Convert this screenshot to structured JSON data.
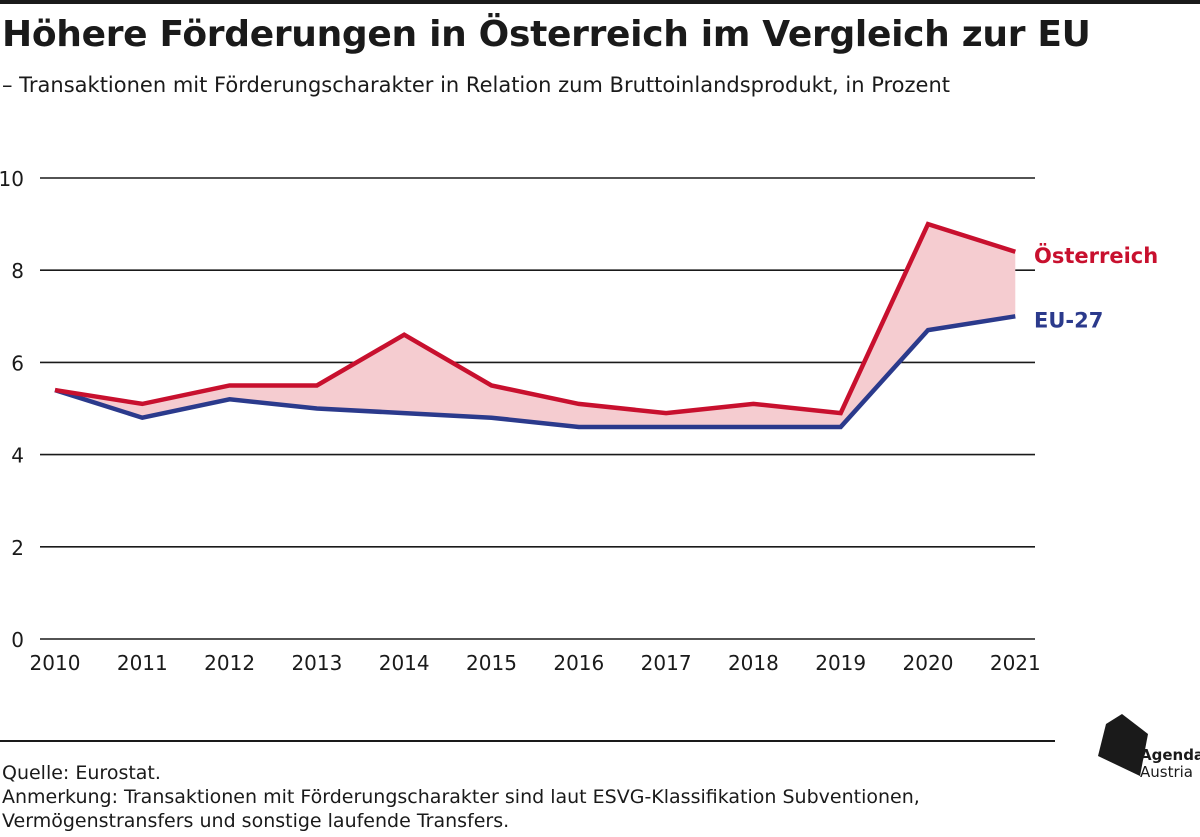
{
  "header": {
    "title": "Höhere Förderungen in Österreich im Vergleich zur EU",
    "subtitle": "– Transaktionen mit Förderungscharakter in Relation zum Bruttoinlandsprodukt, in Prozent"
  },
  "chart_data": {
    "type": "line",
    "x": [
      "2010",
      "2011",
      "2012",
      "2013",
      "2014",
      "2015",
      "2016",
      "2017",
      "2018",
      "2019",
      "2020",
      "2021"
    ],
    "series": [
      {
        "name": "Österreich",
        "color": "#c8102e",
        "values": [
          5.4,
          5.1,
          5.5,
          5.5,
          6.6,
          5.5,
          5.1,
          4.9,
          5.1,
          4.9,
          9.0,
          8.4
        ]
      },
      {
        "name": "EU-27",
        "color": "#2b3a8c",
        "values": [
          5.4,
          4.8,
          5.2,
          5.0,
          4.9,
          4.8,
          4.6,
          4.6,
          4.6,
          4.6,
          6.7,
          7.0
        ]
      }
    ],
    "fill_between": {
      "color": "#f5ccd0"
    },
    "yticks": [
      0,
      2,
      4,
      6,
      8,
      10
    ],
    "ylim": [
      0,
      10
    ],
    "grid": "horizontal",
    "legend": "direct labels at line ends"
  },
  "footer": {
    "source": "Quelle: Eurostat.",
    "note_line1": "Anmerkung: Transaktionen mit Förderungscharakter sind laut ESVG-Klassifikation Subventionen,",
    "note_line2": "Vermögenstransfers und sonstige laufende Transfers."
  },
  "logo": {
    "line1": "Agenda",
    "line2": "Austria"
  }
}
